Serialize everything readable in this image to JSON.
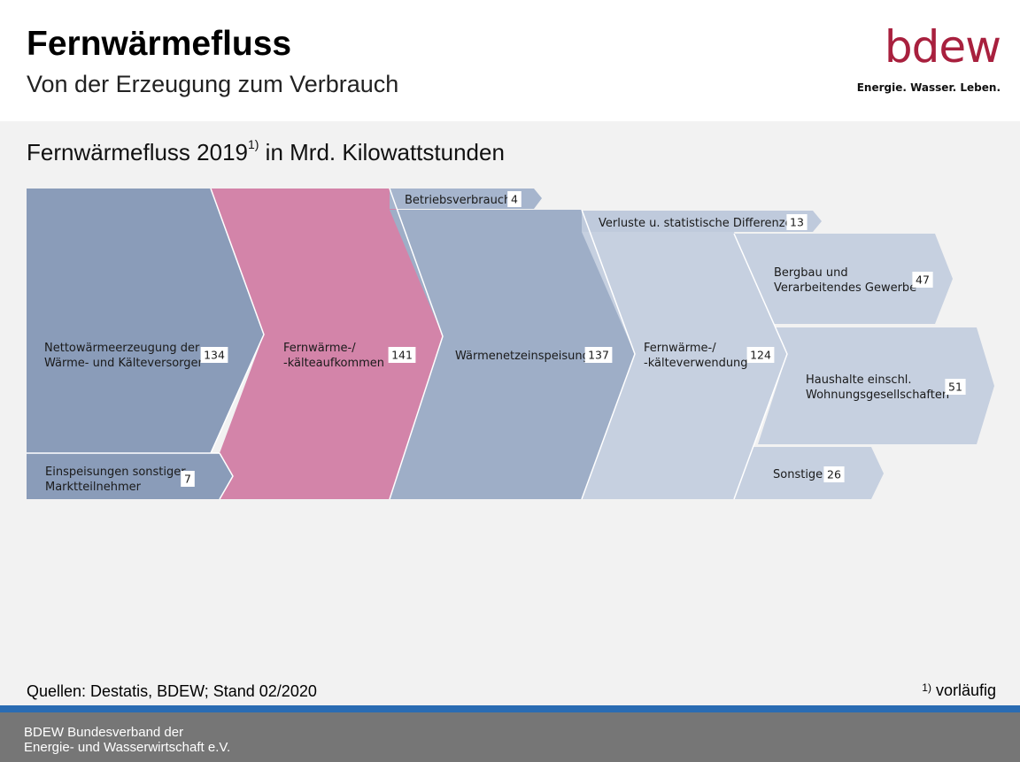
{
  "header": {
    "title": "Fernwärmefluss",
    "subtitle": "Von der Erzeugung zum Verbrauch",
    "logo_word": "bdew",
    "logo_tagline": "Energie. Wasser. Leben."
  },
  "chart_heading": {
    "text": "Fernwärmefluss 2019",
    "superscript": "1)",
    "suffix": " in Mrd. Kilowattstunden"
  },
  "colors": {
    "generation": "#8a9cb9",
    "aufkommen": "#d384a9",
    "netz": "#9eaec7",
    "verwendung": "#c6d0e0",
    "end_use": "#c6d0e0",
    "betrieb": "#a6b5cd",
    "verluste": "#bfcadc"
  },
  "chart_data": {
    "type": "sankey",
    "unit": "Mrd. Kilowattstunden",
    "nodes": [
      {
        "id": "nettoerzeugung",
        "label_lines": [
          "Nettowärmeerzeugung der",
          "Wärme- und Kälteversorger"
        ],
        "value": 134
      },
      {
        "id": "einspeisungen",
        "label_lines": [
          "Einspeisungen sonstiger",
          "Marktteilnehmer"
        ],
        "value": 7
      },
      {
        "id": "aufkommen",
        "label_lines": [
          "Fernwärme-/",
          "-kälteaufkommen"
        ],
        "value": 141
      },
      {
        "id": "betriebsverbrauch",
        "label_lines": [
          "Betriebsverbrauch"
        ],
        "value": 4
      },
      {
        "id": "waermenetz",
        "label_lines": [
          "Wärmenetzeinspeisung"
        ],
        "value": 137
      },
      {
        "id": "verluste",
        "label_lines": [
          "Verluste u. statistische Differenzen"
        ],
        "value": 13
      },
      {
        "id": "verwendung",
        "label_lines": [
          "Fernwärme-/",
          "-kälteverwendung"
        ],
        "value": 124
      },
      {
        "id": "bergbau",
        "label_lines": [
          "Bergbau und",
          "Verarbeitendes Gewerbe"
        ],
        "value": 47
      },
      {
        "id": "haushalte",
        "label_lines": [
          "Haushalte einschl.",
          "Wohnungsgesellschaften"
        ],
        "value": 51
      },
      {
        "id": "sonstige",
        "label_lines": [
          "Sonstige"
        ],
        "value": 26
      }
    ],
    "links": [
      {
        "source": "nettoerzeugung",
        "target": "aufkommen",
        "value": 134
      },
      {
        "source": "einspeisungen",
        "target": "aufkommen",
        "value": 7
      },
      {
        "source": "aufkommen",
        "target": "betriebsverbrauch",
        "value": 4
      },
      {
        "source": "aufkommen",
        "target": "waermenetz",
        "value": 137
      },
      {
        "source": "waermenetz",
        "target": "verluste",
        "value": 13
      },
      {
        "source": "waermenetz",
        "target": "verwendung",
        "value": 124
      },
      {
        "source": "verwendung",
        "target": "bergbau",
        "value": 47
      },
      {
        "source": "verwendung",
        "target": "haushalte",
        "value": 51
      },
      {
        "source": "verwendung",
        "target": "sonstige",
        "value": 26
      }
    ]
  },
  "footer": {
    "sources": "Quellen: Destatis, BDEW; Stand 02/2020",
    "footnote_marker": "1)",
    "footnote_text": " vorläufig",
    "org_line1": "BDEW Bundesverband der",
    "org_line2": "Energie- und Wasserwirtschaft e.V."
  }
}
